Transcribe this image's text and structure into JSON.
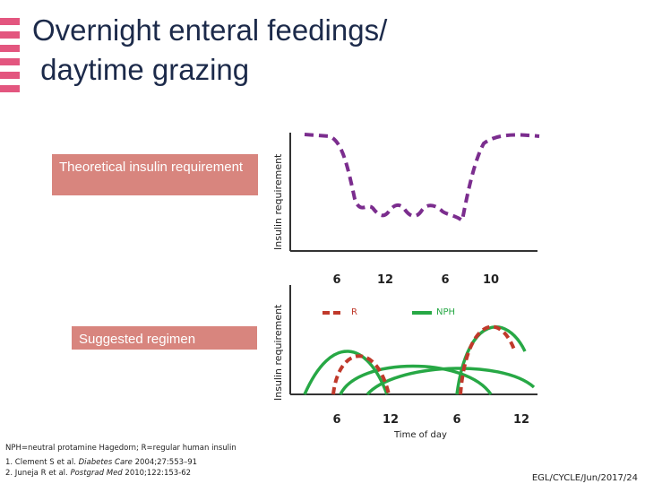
{
  "title_line1": "Overnight enteral feedings/",
  "title_line2": " daytime grazing",
  "box_theoretical": "Theoretical insulin requirement",
  "box_suggested": "Suggested regimen",
  "y_axis_label_top": "Insulin requirement",
  "y_axis_label_bottom": "Insulin requirement",
  "top_axis_ticks": [
    "6",
    "12",
    "6",
    "10"
  ],
  "bottom_axis_ticks": [
    "6",
    "12",
    "6",
    "12"
  ],
  "x_axis_title": "Time of day",
  "legend": {
    "r_label": "R",
    "nph_label": "NPH",
    "r_color": "#c0392b",
    "nph_color": "#27a845"
  },
  "curve_colors": {
    "requirement": "#7b2d8e",
    "r": "#c0392b",
    "nph": "#27a845"
  },
  "footnotes": {
    "line1": "NPH=neutral protamine Hagedorn; R=regular human insulin",
    "line2_pre": "1. Clement S et al. ",
    "line2_journal": "Diabetes Care",
    "line2_post": " 2004;27:553–91",
    "line3_pre": "2. Juneja R et al. ",
    "line3_journal": "Postgrad Med",
    "line3_post": " 2010;122:153-62"
  },
  "slide_code": "EGL/CYCLE/Jun/2017/24"
}
